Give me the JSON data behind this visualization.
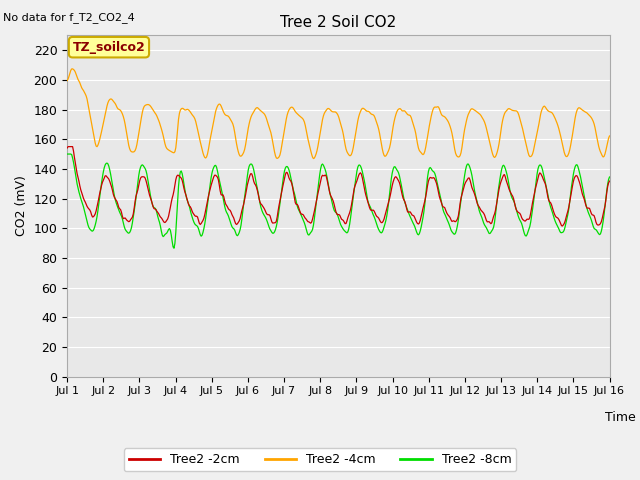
{
  "title": "Tree 2 Soil CO2",
  "no_data_text": "No data for f_T2_CO2_4",
  "ylabel": "CO2 (mV)",
  "xlabel": "Time",
  "ylim": [
    0,
    230
  ],
  "yticks": [
    0,
    20,
    40,
    60,
    80,
    100,
    120,
    140,
    160,
    180,
    200,
    220
  ],
  "xlim_days": [
    1,
    16
  ],
  "xtick_labels": [
    "Jul 1",
    "Jul 2",
    "Jul 3",
    "Jul 4",
    "Jul 5",
    "Jul 6",
    "Jul 7",
    "Jul 8",
    "Jul 9",
    "Jul 10",
    "Jul 11",
    "Jul 12",
    "Jul 13",
    "Jul 14",
    "Jul 15",
    "Jul 16"
  ],
  "plot_bg_color": "#e8e8e8",
  "fig_bg_color": "#f0f0f0",
  "legend_box_color": "#ffff99",
  "legend_box_label": "TZ_soilco2",
  "legend_box_edge": "#ccaa00",
  "series_colors": {
    "2cm": "#cc0000",
    "4cm": "#ffa500",
    "8cm": "#00dd00"
  },
  "legend_labels": [
    "Tree2 -2cm",
    "Tree2 -4cm",
    "Tree2 -8cm"
  ],
  "n_points": 600
}
